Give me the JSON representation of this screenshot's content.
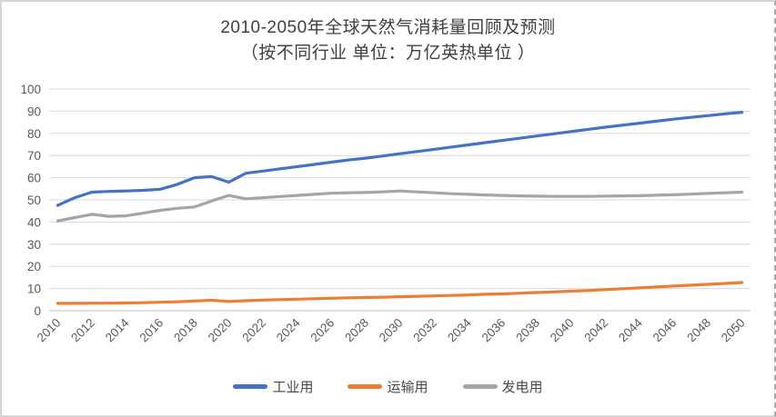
{
  "chart_data": {
    "type": "line",
    "title": "2010-2050年全球天然气消耗量回顾及预测",
    "subtitle": "（按不同行业 单位：万亿英热单位 ）",
    "x": [
      2010,
      2011,
      2012,
      2013,
      2014,
      2015,
      2016,
      2017,
      2018,
      2019,
      2020,
      2021,
      2022,
      2023,
      2024,
      2025,
      2026,
      2027,
      2028,
      2029,
      2030,
      2031,
      2032,
      2033,
      2034,
      2035,
      2036,
      2037,
      2038,
      2039,
      2040,
      2041,
      2042,
      2043,
      2044,
      2045,
      2046,
      2047,
      2048,
      2049,
      2050
    ],
    "x_tick_labels": [
      "2010",
      "2012",
      "2014",
      "2016",
      "2018",
      "2020",
      "2022",
      "2024",
      "2026",
      "2028",
      "2030",
      "2032",
      "2034",
      "2036",
      "2038",
      "2040",
      "2042",
      "2044",
      "2046",
      "2048",
      "2050"
    ],
    "x_tick_step": 2,
    "x_tick_rotation": -45,
    "ylim": [
      0,
      100
    ],
    "ytick_step": 10,
    "y_tick_labels": [
      "0",
      "10",
      "20",
      "30",
      "40",
      "50",
      "60",
      "70",
      "80",
      "90",
      "100"
    ],
    "grid": "horizontal",
    "legend_position": "bottom",
    "series": [
      {
        "key": "industrial",
        "name": "工业用",
        "color": "#4472C4",
        "values": [
          47.5,
          51,
          53.5,
          53.8,
          54,
          54.3,
          54.8,
          57,
          60,
          60.5,
          58,
          62,
          63,
          64,
          65,
          66,
          67,
          68,
          68.8,
          69.8,
          70.8,
          71.8,
          72.8,
          73.8,
          74.8,
          75.8,
          76.8,
          77.8,
          78.8,
          79.8,
          80.8,
          81.8,
          82.8,
          83.7,
          84.6,
          85.5,
          86.4,
          87.2,
          88,
          88.8,
          89.5
        ]
      },
      {
        "key": "transport",
        "name": "运输用",
        "color": "#ED7D31",
        "values": [
          3.3,
          3.3,
          3.4,
          3.4,
          3.5,
          3.6,
          3.8,
          4.0,
          4.4,
          4.7,
          4.2,
          4.5,
          4.8,
          5.0,
          5.2,
          5.4,
          5.6,
          5.8,
          6.0,
          6.1,
          6.3,
          6.5,
          6.7,
          6.9,
          7.1,
          7.4,
          7.6,
          7.9,
          8.2,
          8.5,
          8.8,
          9.1,
          9.5,
          9.9,
          10.3,
          10.7,
          11.1,
          11.5,
          11.9,
          12.3,
          12.7
        ]
      },
      {
        "key": "power",
        "name": "发电用",
        "color": "#A5A5A5",
        "values": [
          40.5,
          42,
          43.5,
          42.6,
          42.8,
          44,
          45.3,
          46.2,
          46.8,
          49.5,
          52,
          50.5,
          51,
          51.5,
          52,
          52.5,
          53,
          53.2,
          53.3,
          53.6,
          54,
          53.6,
          53.2,
          52.8,
          52.5,
          52.2,
          52,
          51.8,
          51.7,
          51.6,
          51.6,
          51.6,
          51.7,
          51.8,
          51.9,
          52.1,
          52.3,
          52.6,
          52.9,
          53.2,
          53.5
        ]
      }
    ],
    "style_colors": {
      "gridline": "#D9D9D9",
      "axis_line": "#BFBFBF",
      "tick_label": "#595959",
      "title_text": "#404040"
    }
  }
}
